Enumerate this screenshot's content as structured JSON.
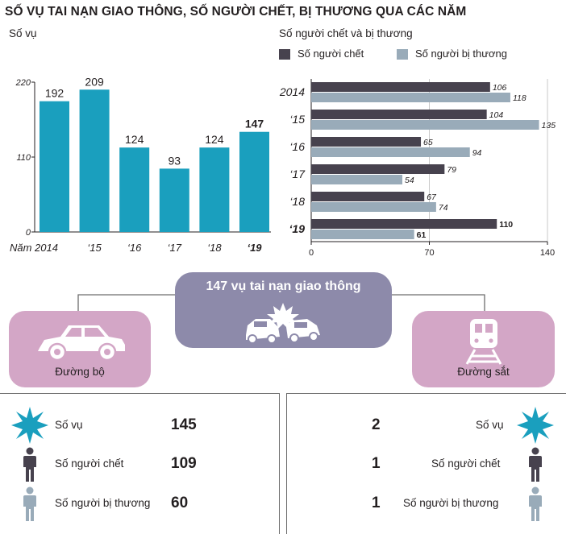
{
  "title": "SỐ VỤ TAI NẠN GIAO THÔNG, SỐ NGƯỜI CHẾT, BỊ THƯƠNG QUA CÁC NĂM",
  "colors": {
    "teal": "#1a9fbe",
    "dark": "#47424e",
    "gray": "#99abb9",
    "purple": "#8d8aaa",
    "pink": "#d3a6c6"
  },
  "chart_data": [
    {
      "type": "bar",
      "title": "Số vụ",
      "categories": [
        "Năm 2014",
        "‘15",
        "‘16",
        "‘17",
        "‘18",
        "‘19"
      ],
      "values": [
        192,
        209,
        124,
        93,
        124,
        147
      ],
      "ylim": [
        0,
        220
      ],
      "yticks": [
        "220",
        "110",
        "0"
      ],
      "grid": false
    },
    {
      "type": "bar",
      "orientation": "horizontal",
      "title": "Số người chết và bị thương",
      "categories": [
        "2014",
        "‘15",
        "‘16",
        "‘17",
        "‘18",
        "‘19"
      ],
      "series": [
        {
          "name": "Số người chết",
          "values": [
            106,
            104,
            65,
            79,
            67,
            110
          ]
        },
        {
          "name": "Số người bị thương",
          "values": [
            118,
            135,
            94,
            54,
            74,
            61
          ]
        }
      ],
      "xlim": [
        0,
        140
      ],
      "xticks": [
        "0",
        "70",
        "140"
      ],
      "legend": "top",
      "grid": true
    }
  ],
  "summary": {
    "center_title": "147 vụ tai nạn giao thông",
    "road_label": "Đường bộ",
    "rail_label": "Đường sắt"
  },
  "road": {
    "rows": [
      {
        "label": "Số vụ",
        "value": "145"
      },
      {
        "label": "Số người chết",
        "value": "109"
      },
      {
        "label": "Số người bị thương",
        "value": "60"
      }
    ]
  },
  "rail": {
    "rows": [
      {
        "label": "Số vụ",
        "value": "2"
      },
      {
        "label": "Số người chết",
        "value": "1"
      },
      {
        "label": "Số người bị thương",
        "value": "1"
      }
    ]
  }
}
